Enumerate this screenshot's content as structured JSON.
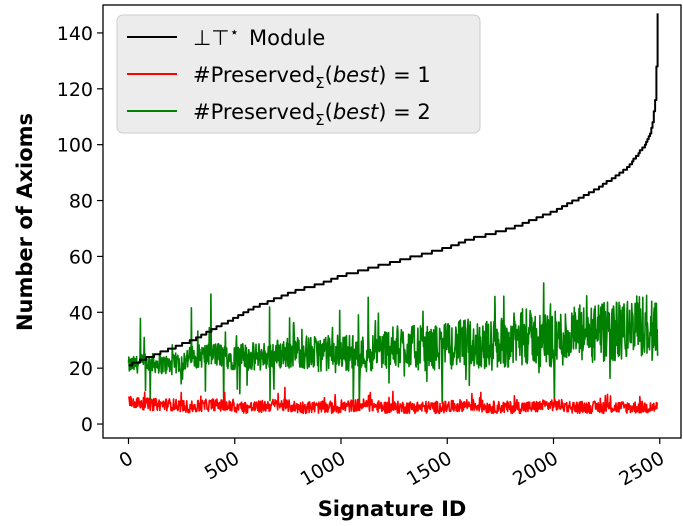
{
  "chart_data": {
    "type": "line",
    "xlabel": "Signature ID",
    "ylabel": "Number of Axioms",
    "xlim": [
      -120,
      2600
    ],
    "ylim": [
      -5,
      150
    ],
    "xticks": [
      0,
      500,
      1000,
      1500,
      2000,
      2500
    ],
    "yticks": [
      0,
      20,
      40,
      60,
      80,
      100,
      120,
      140
    ],
    "grid": false,
    "legend_position": "top-left",
    "series": [
      {
        "name": "⊥⊤* Module",
        "color": "#000000",
        "x": [
          0,
          100,
          200,
          300,
          400,
          500,
          600,
          700,
          800,
          900,
          1000,
          1100,
          1200,
          1300,
          1400,
          1500,
          1600,
          1700,
          1800,
          1900,
          2000,
          2100,
          2200,
          2300,
          2350,
          2400,
          2430,
          2450,
          2460,
          2470,
          2480,
          2485,
          2490
        ],
        "values": [
          21,
          24,
          27,
          30,
          34,
          38,
          42,
          45,
          48,
          50,
          53,
          55,
          57,
          59,
          61,
          63,
          66,
          68,
          70,
          73,
          76,
          80,
          84,
          89,
          92,
          97,
          100,
          103,
          106,
          110,
          118,
          130,
          147
        ]
      },
      {
        "name": "#Preserved_Σ(best) = 1",
        "color": "#ff0000",
        "x": [
          0,
          100,
          200,
          300,
          400,
          500,
          600,
          700,
          800,
          900,
          1000,
          1100,
          1200,
          1300,
          1400,
          1500,
          1600,
          1700,
          1800,
          1900,
          2000,
          2100,
          2200,
          2300,
          2400,
          2490
        ],
        "values": [
          8,
          7,
          7,
          6,
          7,
          6,
          6,
          7,
          6,
          6,
          6,
          7,
          6,
          6,
          6,
          6,
          7,
          6,
          6,
          6,
          7,
          6,
          6,
          6,
          6,
          6
        ]
      },
      {
        "name": "#Preserved_Σ(best) = 2",
        "color": "#008000",
        "x": [
          0,
          100,
          200,
          300,
          400,
          500,
          600,
          700,
          800,
          900,
          1000,
          1100,
          1200,
          1300,
          1400,
          1500,
          1600,
          1700,
          1800,
          1900,
          2000,
          2100,
          2200,
          2300,
          2400,
          2490
        ],
        "values": [
          21,
          22,
          21,
          24,
          25,
          24,
          24,
          25,
          26,
          25,
          26,
          25,
          27,
          28,
          27,
          28,
          29,
          28,
          30,
          31,
          30,
          32,
          32,
          33,
          35,
          36
        ]
      }
    ]
  },
  "legend": {
    "module_prefix": "⊥⊤",
    "module_star": "⋆",
    "module_word": "Module",
    "preserved_prefix": "#Preserved",
    "preserved_sub": "Σ",
    "preserved_arg": "best",
    "preserved_eq1": ") = 1",
    "preserved_eq2": ") = 2",
    "open_paren": "("
  }
}
